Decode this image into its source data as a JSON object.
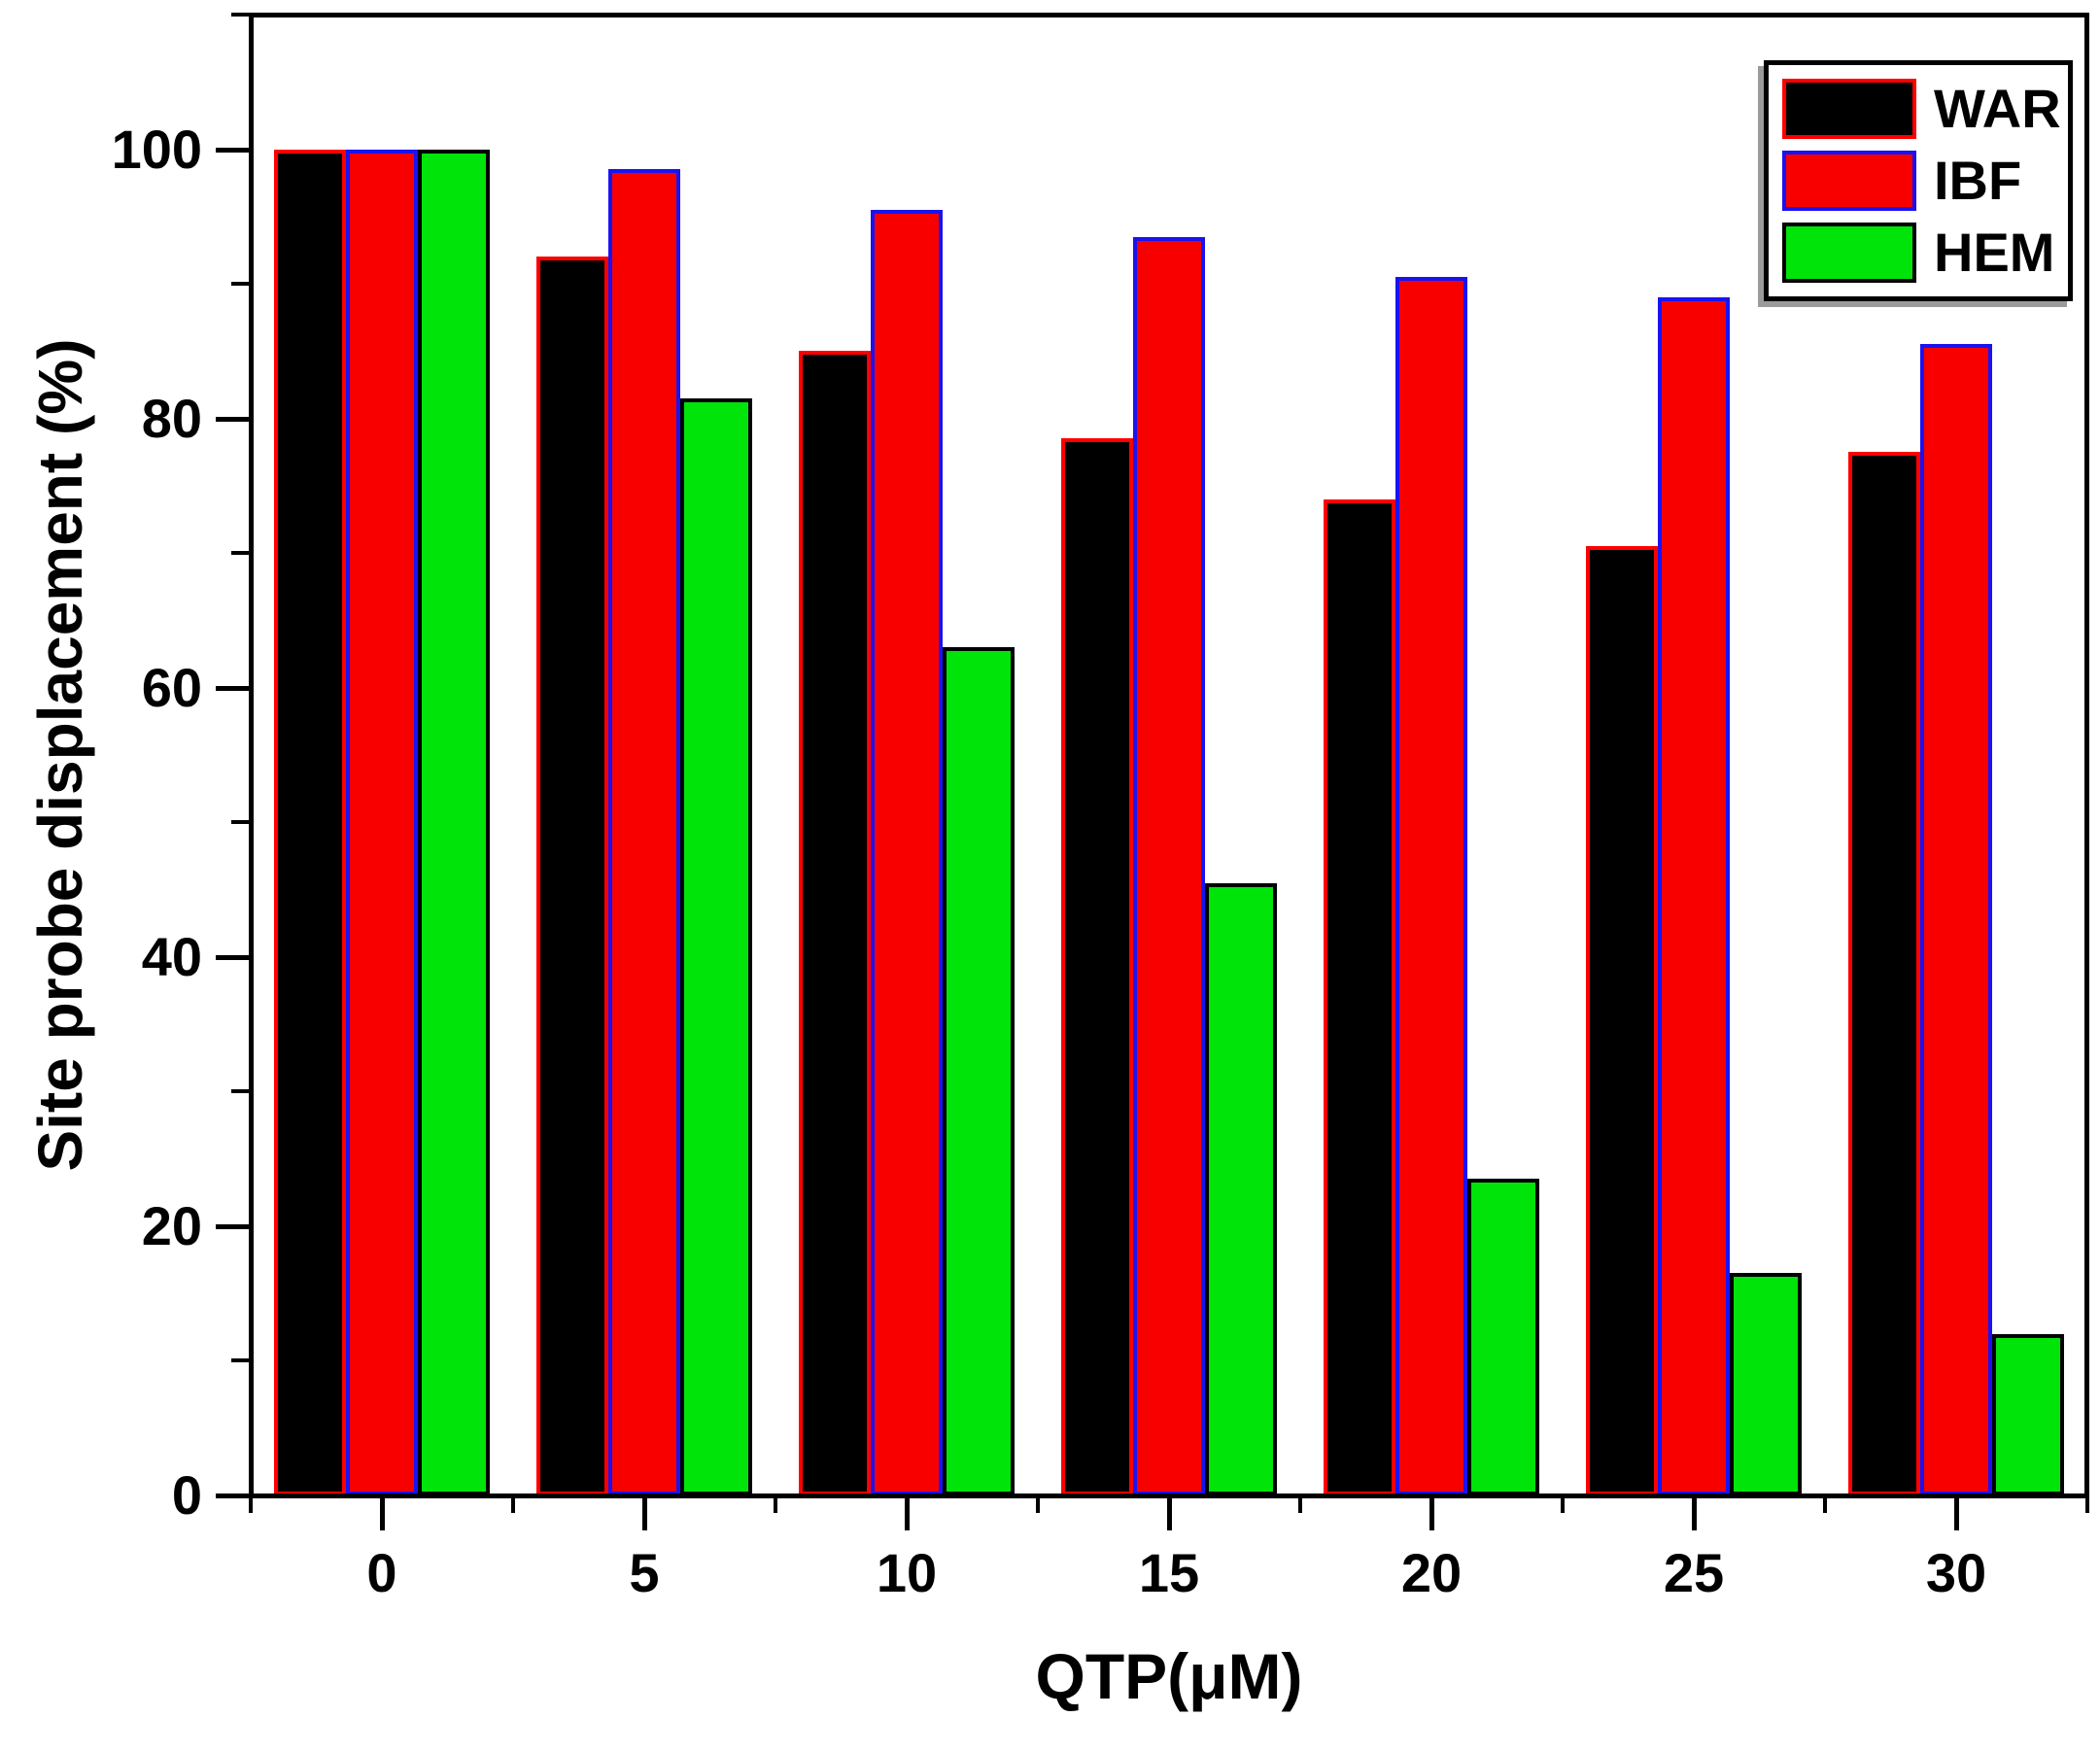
{
  "chart_data": {
    "type": "bar",
    "xlabel": "QTP(μM)",
    "ylabel": "Site probe displacement (%)",
    "categories": [
      "0",
      "5",
      "10",
      "15",
      "20",
      "25",
      "30"
    ],
    "series": [
      {
        "name": "WAR",
        "fill": "#000000",
        "edge": "#ff0000",
        "values": [
          100,
          92,
          85,
          78.5,
          74,
          70.5,
          77.5
        ]
      },
      {
        "name": "IBF",
        "fill": "#f80000",
        "edge": "#1a12f0",
        "values": [
          100,
          98.5,
          95.5,
          93.5,
          90.5,
          89,
          85.5
        ]
      },
      {
        "name": "HEM",
        "fill": "#00e40a",
        "edge": "#000000",
        "values": [
          100,
          81.5,
          63,
          45.5,
          23.5,
          16.5,
          12
        ]
      }
    ],
    "ylim": [
      0,
      110
    ],
    "y_major_ticks": [
      0,
      20,
      40,
      60,
      80,
      100
    ],
    "y_minor_ticks": [
      10,
      30,
      50,
      70,
      90,
      110
    ],
    "grid": false,
    "legend_position": "top-right",
    "axis_color": "#000000",
    "background_color": "#ffffff"
  }
}
